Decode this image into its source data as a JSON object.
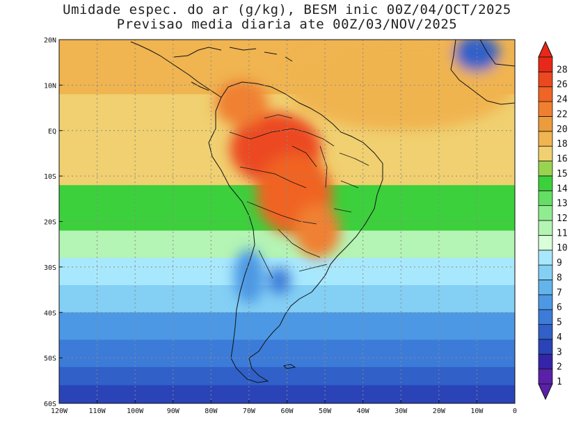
{
  "title": {
    "line1": "Umidade espec. do ar (g/kg), BESM inic 00Z/04/OCT/2025",
    "line2": "Previsao media diaria ate 00Z/03/NOV/2025"
  },
  "map": {
    "lon_range": [
      -120,
      0
    ],
    "lat_range": [
      -60,
      20
    ],
    "lon_ticks": [
      {
        "value": -120,
        "label": "120W"
      },
      {
        "value": -110,
        "label": "110W"
      },
      {
        "value": -100,
        "label": "100W"
      },
      {
        "value": -90,
        "label": "90W"
      },
      {
        "value": -80,
        "label": "80W"
      },
      {
        "value": -70,
        "label": "70W"
      },
      {
        "value": -60,
        "label": "60W"
      },
      {
        "value": -50,
        "label": "50W"
      },
      {
        "value": -40,
        "label": "40W"
      },
      {
        "value": -30,
        "label": "30W"
      },
      {
        "value": -20,
        "label": "20W"
      },
      {
        "value": -10,
        "label": "10W"
      },
      {
        "value": 0,
        "label": "0"
      }
    ],
    "lat_ticks": [
      {
        "value": 20,
        "label": "20N"
      },
      {
        "value": 10,
        "label": "10N"
      },
      {
        "value": 0,
        "label": "EQ"
      },
      {
        "value": -10,
        "label": "10S"
      },
      {
        "value": -20,
        "label": "20S"
      },
      {
        "value": -30,
        "label": "30S"
      },
      {
        "value": -40,
        "label": "40S"
      },
      {
        "value": -50,
        "label": "50S"
      },
      {
        "value": -60,
        "label": "60S"
      }
    ],
    "gridlines": true
  },
  "colorbar": {
    "levels": [
      {
        "label": "1",
        "color": "#5a20a8"
      },
      {
        "label": "2",
        "color": "#3424a8"
      },
      {
        "label": "3",
        "color": "#2a44b8"
      },
      {
        "label": "4",
        "color": "#3060c8"
      },
      {
        "label": "5",
        "color": "#3c7cd8"
      },
      {
        "label": "6",
        "color": "#4c98e4"
      },
      {
        "label": "7",
        "color": "#64b4ec"
      },
      {
        "label": "8",
        "color": "#84cff4"
      },
      {
        "label": "9",
        "color": "#a8e8fc"
      },
      {
        "label": "10",
        "color": "#d8ffd8"
      },
      {
        "label": "11",
        "color": "#b4f4b4"
      },
      {
        "label": "12",
        "color": "#90ec90"
      },
      {
        "label": "13",
        "color": "#64de64"
      },
      {
        "label": "14",
        "color": "#3cd03c"
      },
      {
        "label": "15",
        "color": "#98d450"
      },
      {
        "label": "16",
        "color": "#f0d070"
      },
      {
        "label": "18",
        "color": "#f0b450"
      },
      {
        "label": "20",
        "color": "#ec9c3c"
      },
      {
        "label": "22",
        "color": "#f08030"
      },
      {
        "label": "24",
        "color": "#f06424"
      },
      {
        "label": "26",
        "color": "#ec4820"
      },
      {
        "label": "28",
        "color": "#e82818"
      }
    ]
  },
  "field": {
    "units": "g/kg",
    "description_levels": "specific humidity",
    "centers": [
      {
        "lon": -63,
        "lat": -4,
        "value": 26,
        "rx": 12,
        "ry": 8
      },
      {
        "lon": -58,
        "lat": -14,
        "value": 24,
        "rx": 10,
        "ry": 9
      },
      {
        "lon": -52,
        "lat": -22,
        "value": 22,
        "rx": 6,
        "ry": 6
      },
      {
        "lon": -72,
        "lat": 6,
        "value": 22,
        "rx": 7,
        "ry": 5
      },
      {
        "lon": -30,
        "lat": 10,
        "value": 18,
        "rx": 30,
        "ry": 10
      },
      {
        "lon": -70,
        "lat": -32,
        "value": 6,
        "rx": 4,
        "ry": 6
      },
      {
        "lon": -62,
        "lat": -33,
        "value": 5,
        "rx": 3,
        "ry": 3
      },
      {
        "lon": -10,
        "lat": 17,
        "value": 4,
        "rx": 6,
        "ry": 4
      }
    ]
  }
}
